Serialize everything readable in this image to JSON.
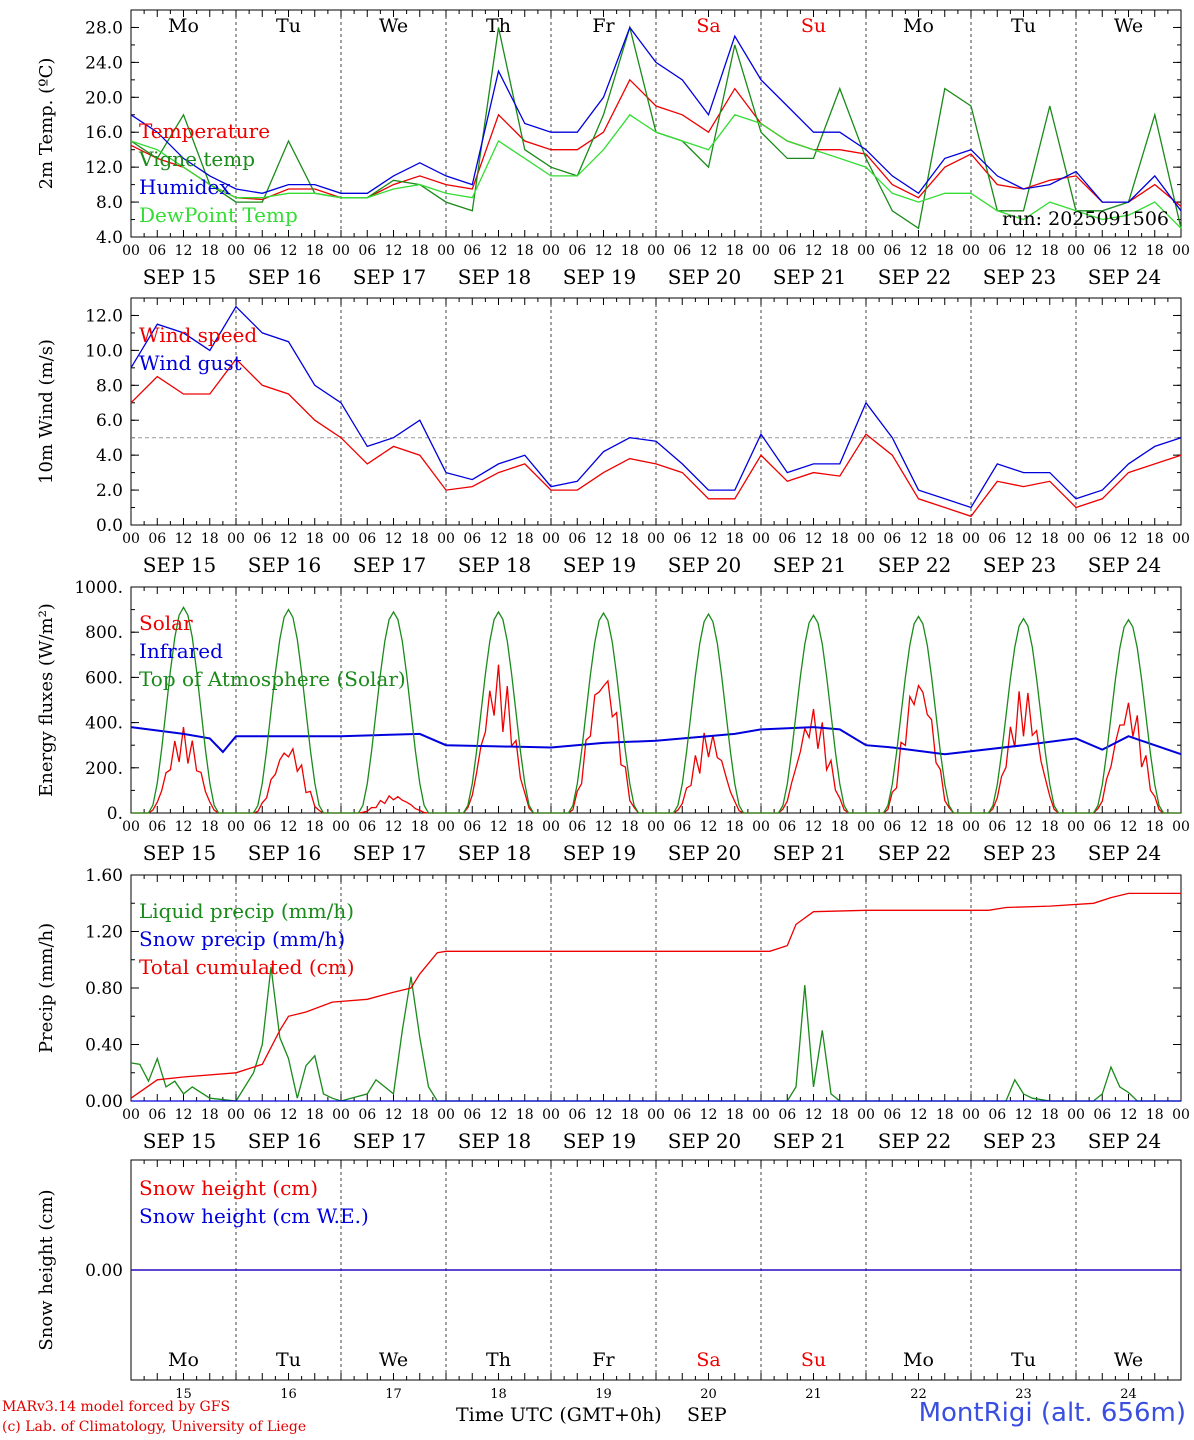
{
  "colors": {
    "red": "#ee0000",
    "green": "#1a8a1a",
    "blue": "#0000dd",
    "lightgreen": "#33dd33",
    "weekend": "#ee0000"
  },
  "days": {
    "dow": [
      "Mo",
      "Tu",
      "We",
      "Th",
      "Fr",
      "Sa",
      "Su",
      "Mo",
      "Tu",
      "We"
    ],
    "weekend": [
      false,
      false,
      false,
      false,
      false,
      true,
      true,
      false,
      false,
      false
    ],
    "dates": [
      "SEP 15",
      "SEP 16",
      "SEP 17",
      "SEP 18",
      "SEP 19",
      "SEP 20",
      "SEP 21",
      "SEP 22",
      "SEP 23",
      "SEP 24"
    ],
    "daynums": [
      "15",
      "16",
      "17",
      "18",
      "19",
      "20",
      "21",
      "22",
      "23",
      "24"
    ],
    "hours": [
      "00",
      "06",
      "12",
      "18"
    ],
    "last_hour": "00"
  },
  "footer": {
    "credit1": "MARv3.14 model forced by GFS",
    "credit2": "(c) Lab. of Climatology, University of Liege",
    "xtitle": "Time UTC (GMT+0h)",
    "xtitle_month": "SEP",
    "station": "MontRigi (alt. 656m)"
  },
  "chart_data": [
    {
      "type": "line",
      "ylabel": "2m Temp. (ºC)",
      "ylim": [
        4,
        30
      ],
      "yticks": [
        "4.0",
        "8.0",
        "12.0",
        "16.0",
        "20.0",
        "24.0",
        "28.0"
      ],
      "annotation": "run: 2025091506",
      "x_unit": "hours since SEP 15 00 UTC",
      "series": [
        {
          "name": "Temperature",
          "color": "red",
          "x": [
            0,
            6,
            12,
            18,
            24,
            30,
            36,
            42,
            48,
            54,
            60,
            66,
            72,
            78,
            84,
            90,
            96,
            102,
            108,
            114,
            120,
            126,
            132,
            138,
            144,
            150,
            156,
            162,
            168,
            174,
            180,
            186,
            192,
            198,
            204,
            210,
            216,
            222,
            228,
            234,
            240
          ],
          "y": [
            14.5,
            13,
            12,
            10,
            8.5,
            8.3,
            9.5,
            9.5,
            8.5,
            8.5,
            10,
            11,
            10,
            9.5,
            18,
            15,
            14,
            14,
            16,
            22,
            19,
            18,
            16,
            21,
            17,
            15,
            14,
            14,
            13.5,
            10,
            8.5,
            12,
            13.5,
            10,
            9.5,
            10.5,
            11,
            8,
            8,
            10,
            7.5
          ]
        },
        {
          "name": "Vigne temp",
          "color": "green",
          "x": [
            0,
            6,
            12,
            18,
            24,
            30,
            36,
            42,
            48,
            54,
            60,
            66,
            72,
            78,
            84,
            90,
            96,
            102,
            108,
            114,
            120,
            126,
            132,
            138,
            144,
            150,
            156,
            162,
            168,
            174,
            180,
            186,
            192,
            198,
            204,
            210,
            216,
            222,
            228,
            234,
            240
          ],
          "y": [
            15,
            13,
            18,
            10,
            8,
            8,
            15,
            9,
            8.5,
            8.5,
            10.5,
            10,
            8,
            7,
            28,
            14,
            12,
            11,
            18,
            28,
            16,
            15,
            12,
            26,
            16,
            13,
            13,
            21,
            13,
            7,
            5,
            21,
            19,
            7,
            7,
            19,
            7,
            7,
            8,
            18,
            5
          ]
        },
        {
          "name": "Humidex",
          "color": "blue",
          "x": [
            0,
            6,
            12,
            18,
            24,
            30,
            36,
            42,
            48,
            54,
            60,
            66,
            72,
            78,
            84,
            90,
            96,
            102,
            108,
            114,
            120,
            126,
            132,
            138,
            144,
            150,
            156,
            162,
            168,
            174,
            180,
            186,
            192,
            198,
            204,
            210,
            216,
            222,
            228,
            234,
            240
          ],
          "y": [
            18,
            16,
            13,
            11,
            9.5,
            9,
            10,
            10,
            9,
            9,
            11,
            12.5,
            11,
            10,
            23,
            17,
            16,
            16,
            20,
            28,
            24,
            22,
            18,
            27,
            22,
            19,
            16,
            16,
            14,
            11,
            9,
            13,
            14,
            11,
            9.5,
            10,
            11.5,
            8,
            8,
            11,
            7
          ]
        },
        {
          "name": "DewPoint Temp",
          "color": "lightgreen",
          "x": [
            0,
            6,
            12,
            18,
            24,
            30,
            36,
            42,
            48,
            54,
            60,
            66,
            72,
            78,
            84,
            90,
            96,
            102,
            108,
            114,
            120,
            126,
            132,
            138,
            144,
            150,
            156,
            162,
            168,
            174,
            180,
            186,
            192,
            198,
            204,
            210,
            216,
            222,
            228,
            234,
            240
          ],
          "y": [
            15,
            14,
            12,
            10,
            8.5,
            8.5,
            9,
            9,
            8.5,
            8.5,
            9.5,
            10,
            9,
            8.5,
            15,
            13,
            11,
            11,
            14,
            18,
            16,
            15,
            14,
            18,
            17,
            15,
            14,
            13,
            12,
            9,
            8,
            9,
            9,
            7,
            6,
            8,
            7,
            6,
            6.5,
            8,
            5
          ]
        }
      ]
    },
    {
      "type": "line",
      "ylabel": "10m Wind (m/s)",
      "ylim": [
        0,
        13
      ],
      "yticks": [
        "0.0",
        "2.0",
        "4.0",
        "6.0",
        "8.0",
        "10.0",
        "12.0"
      ],
      "reference_line": 5,
      "x_unit": "hours since SEP 15 00 UTC",
      "series": [
        {
          "name": "Wind speed",
          "color": "red",
          "x": [
            0,
            6,
            12,
            18,
            24,
            30,
            36,
            42,
            48,
            54,
            60,
            66,
            72,
            78,
            84,
            90,
            96,
            102,
            108,
            114,
            120,
            126,
            132,
            138,
            144,
            150,
            156,
            162,
            168,
            174,
            180,
            186,
            192,
            198,
            204,
            210,
            216,
            222,
            228,
            234,
            240
          ],
          "y": [
            7,
            8.5,
            7.5,
            7.5,
            9.5,
            8,
            7.5,
            6,
            5,
            3.5,
            4.5,
            4,
            2,
            2.2,
            3,
            3.5,
            2,
            2,
            3,
            3.8,
            3.5,
            3,
            1.5,
            1.5,
            4,
            2.5,
            3,
            2.8,
            5.2,
            4,
            1.5,
            1,
            0.5,
            2.5,
            2.2,
            2.5,
            1,
            1.5,
            3,
            3.5,
            4
          ]
        },
        {
          "name": "Wind gust",
          "color": "blue",
          "x": [
            0,
            6,
            12,
            18,
            24,
            30,
            36,
            42,
            48,
            54,
            60,
            66,
            72,
            78,
            84,
            90,
            96,
            102,
            108,
            114,
            120,
            126,
            132,
            138,
            144,
            150,
            156,
            162,
            168,
            174,
            180,
            186,
            192,
            198,
            204,
            210,
            216,
            222,
            228,
            234,
            240
          ],
          "y": [
            9,
            11.5,
            11,
            10,
            12.5,
            11,
            10.5,
            8,
            7,
            4.5,
            5,
            6,
            3,
            2.6,
            3.5,
            4,
            2.2,
            2.5,
            4.2,
            5,
            4.8,
            3.5,
            2,
            2,
            5.2,
            3,
            3.5,
            3.5,
            7,
            5,
            2,
            1.5,
            1,
            3.5,
            3,
            3,
            1.5,
            2,
            3.5,
            4.5,
            5
          ]
        }
      ]
    },
    {
      "type": "line",
      "ylabel": "Energy fluxes (W/m²)",
      "ylim": [
        0,
        1000
      ],
      "yticks": [
        "0.",
        "200.",
        "400.",
        "600.",
        "800.",
        "1000."
      ],
      "x_unit": "hours since SEP 15 00 UTC",
      "series": [
        {
          "name": "Solar",
          "color": "red",
          "peaks": [
            380,
            310,
            80,
            660,
            660,
            370,
            470,
            630,
            560,
            510
          ]
        },
        {
          "name": "Infrared",
          "color": "blue",
          "x": [
            0,
            12,
            18,
            21,
            24,
            48,
            66,
            72,
            96,
            108,
            120,
            138,
            144,
            156,
            162,
            168,
            174,
            186,
            204,
            216,
            222,
            228,
            240
          ],
          "y": [
            380,
            350,
            330,
            270,
            340,
            340,
            350,
            300,
            290,
            310,
            320,
            350,
            370,
            380,
            370,
            300,
            290,
            260,
            300,
            330,
            280,
            340,
            260
          ]
        },
        {
          "name": "Top of Atmosphere (Solar)",
          "color": "green",
          "peaks": [
            910,
            900,
            890,
            890,
            885,
            880,
            875,
            870,
            860,
            855
          ]
        }
      ]
    },
    {
      "type": "line",
      "ylabel": "Precip (mm/h)",
      "ylim": [
        0,
        1.6
      ],
      "yticks": [
        "0.00",
        "0.40",
        "0.80",
        "1.20",
        "1.60"
      ],
      "x_unit": "hours since SEP 15 00 UTC",
      "series": [
        {
          "name": "Liquid precip (mm/h)",
          "color": "green",
          "x": [
            0,
            2,
            4,
            6,
            8,
            10,
            12,
            14,
            18,
            24,
            28,
            30,
            32,
            34,
            36,
            38,
            40,
            42,
            44,
            46,
            48,
            54,
            56,
            58,
            60,
            62,
            64,
            66,
            68,
            70,
            72,
            74,
            120,
            150,
            152,
            154,
            156,
            158,
            160,
            162,
            168,
            200,
            202,
            204,
            206,
            210,
            220,
            222,
            224,
            226,
            228,
            230,
            240
          ],
          "y": [
            0.27,
            0.26,
            0.14,
            0.3,
            0.1,
            0.14,
            0.05,
            0.1,
            0.02,
            0,
            0.2,
            0.4,
            0.95,
            0.45,
            0.3,
            0.02,
            0.25,
            0.32,
            0.05,
            0.02,
            0,
            0.05,
            0.15,
            0.1,
            0.05,
            0.5,
            0.88,
            0.45,
            0.1,
            0,
            0,
            0,
            0,
            0,
            0.1,
            0.82,
            0.1,
            0.5,
            0.05,
            0,
            0,
            0,
            0.15,
            0.05,
            0.02,
            0,
            0,
            0.05,
            0.24,
            0.1,
            0.06,
            0,
            0
          ]
        },
        {
          "name": "Snow precip (mm/h)",
          "color": "blue",
          "x": [
            0,
            240
          ],
          "y": [
            0,
            0
          ]
        },
        {
          "name": "Total cumulated (cm)",
          "color": "red",
          "x": [
            0,
            6,
            12,
            24,
            30,
            34,
            36,
            40,
            46,
            54,
            60,
            64,
            66,
            70,
            72,
            120,
            146,
            150,
            152,
            156,
            168,
            196,
            200,
            210,
            220,
            224,
            228,
            240
          ],
          "y": [
            0.02,
            0.15,
            0.17,
            0.2,
            0.26,
            0.5,
            0.6,
            0.63,
            0.7,
            0.72,
            0.77,
            0.8,
            0.9,
            1.05,
            1.06,
            1.06,
            1.06,
            1.1,
            1.25,
            1.34,
            1.35,
            1.35,
            1.37,
            1.38,
            1.4,
            1.44,
            1.47,
            1.47
          ]
        }
      ]
    },
    {
      "type": "line",
      "ylabel": "Snow height (cm)",
      "ylim": [
        -1,
        1
      ],
      "yticks": [
        "0.00"
      ],
      "x_unit": "hours since SEP 15 00 UTC",
      "series": [
        {
          "name": "Snow height (cm)",
          "color": "red",
          "x": [
            0,
            240
          ],
          "y": [
            0,
            0
          ]
        },
        {
          "name": "Snow height (cm W.E.)",
          "color": "blue",
          "x": [
            0,
            240
          ],
          "y": [
            0,
            0
          ]
        }
      ]
    }
  ]
}
